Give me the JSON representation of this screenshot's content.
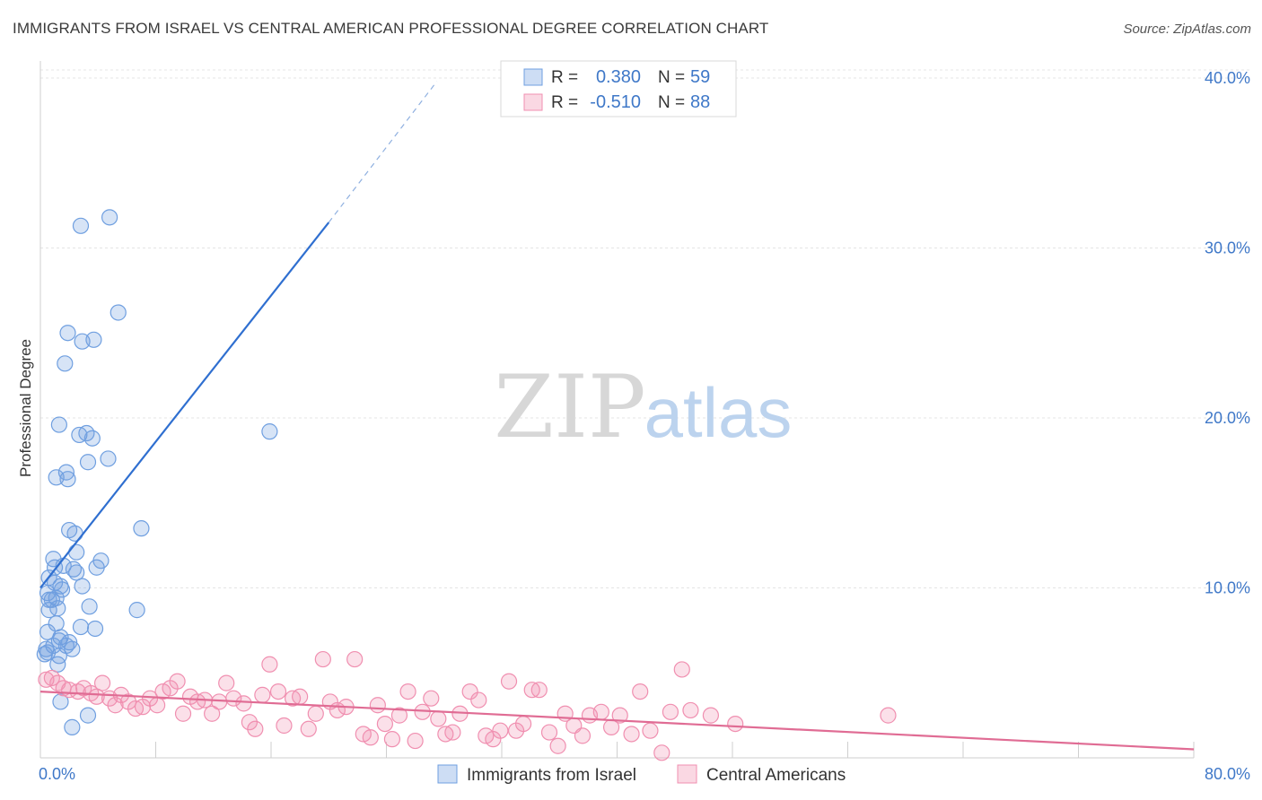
{
  "chart_data": {
    "type": "scatter",
    "title": "IMMIGRANTS FROM ISRAEL VS CENTRAL AMERICAN PROFESSIONAL DEGREE CORRELATION CHART",
    "source": "Source: ZipAtlas.com",
    "ylabel": "Professional Degree",
    "xlabel": "",
    "xlim": [
      0,
      80
    ],
    "ylim": [
      0,
      41
    ],
    "x_tick_labels": [
      "0.0%",
      "80.0%"
    ],
    "y_ticks": [
      {
        "value": 10,
        "label": "10.0%"
      },
      {
        "value": 20,
        "label": "20.0%"
      },
      {
        "value": 30,
        "label": "30.0%"
      },
      {
        "value": 40,
        "label": "40.0%"
      }
    ],
    "watermark": {
      "zip": "ZIP",
      "atlas": "atlas"
    },
    "legend_stats": [
      {
        "r_label": "R =",
        "r_value": "0.380",
        "n_label": "N =",
        "n_value": "59"
      },
      {
        "r_label": "R =",
        "r_value": "-0.510",
        "n_label": "N =",
        "n_value": "88"
      }
    ],
    "series": [
      {
        "name": "Immigrants from Israel",
        "color": "#6f9fe0",
        "line_color": "#2f6fd0",
        "trend": {
          "x0": 0.0,
          "y0": 10.0,
          "x1": 20.0,
          "y1": 31.5,
          "dash_to_x": 27.5,
          "dash_to_y": 39.8
        },
        "points": [
          [
            2.8,
            31.3
          ],
          [
            4.8,
            31.8
          ],
          [
            1.9,
            25.0
          ],
          [
            2.9,
            24.5
          ],
          [
            3.7,
            24.6
          ],
          [
            5.4,
            26.2
          ],
          [
            1.7,
            23.2
          ],
          [
            1.3,
            19.6
          ],
          [
            2.7,
            19.0
          ],
          [
            3.2,
            19.1
          ],
          [
            3.6,
            18.8
          ],
          [
            4.7,
            17.6
          ],
          [
            3.3,
            17.4
          ],
          [
            1.8,
            16.8
          ],
          [
            1.1,
            16.5
          ],
          [
            1.9,
            16.4
          ],
          [
            15.9,
            19.2
          ],
          [
            7.0,
            13.5
          ],
          [
            2.0,
            13.4
          ],
          [
            2.4,
            13.2
          ],
          [
            2.5,
            12.1
          ],
          [
            0.9,
            11.7
          ],
          [
            4.2,
            11.6
          ],
          [
            1.0,
            11.2
          ],
          [
            1.6,
            11.3
          ],
          [
            2.3,
            11.1
          ],
          [
            2.5,
            10.9
          ],
          [
            3.9,
            11.2
          ],
          [
            0.6,
            10.6
          ],
          [
            1.0,
            10.3
          ],
          [
            1.4,
            10.1
          ],
          [
            2.9,
            10.1
          ],
          [
            1.5,
            9.9
          ],
          [
            0.5,
            9.7
          ],
          [
            0.8,
            9.3
          ],
          [
            1.1,
            9.4
          ],
          [
            0.6,
            9.3
          ],
          [
            3.4,
            8.9
          ],
          [
            6.7,
            8.7
          ],
          [
            0.6,
            8.7
          ],
          [
            1.2,
            8.8
          ],
          [
            1.1,
            7.9
          ],
          [
            2.8,
            7.7
          ],
          [
            3.8,
            7.6
          ],
          [
            0.5,
            7.4
          ],
          [
            1.4,
            7.1
          ],
          [
            1.3,
            6.9
          ],
          [
            0.9,
            6.6
          ],
          [
            1.8,
            6.6
          ],
          [
            2.0,
            6.8
          ],
          [
            0.4,
            6.4
          ],
          [
            2.2,
            6.4
          ],
          [
            0.5,
            6.2
          ],
          [
            0.3,
            6.1
          ],
          [
            1.3,
            6.0
          ],
          [
            3.3,
            2.5
          ],
          [
            2.2,
            1.8
          ],
          [
            1.4,
            3.3
          ],
          [
            1.2,
            5.5
          ]
        ]
      },
      {
        "name": "Central Americans",
        "color": "#f08fb0",
        "line_color": "#e06c94",
        "trend": {
          "x0": 0.0,
          "y0": 3.9,
          "x1": 80.0,
          "y1": 0.5
        },
        "points": [
          [
            0.4,
            4.6
          ],
          [
            0.8,
            4.7
          ],
          [
            1.2,
            4.4
          ],
          [
            1.6,
            4.1
          ],
          [
            2.0,
            4.0
          ],
          [
            2.6,
            3.9
          ],
          [
            3.0,
            4.1
          ],
          [
            3.5,
            3.8
          ],
          [
            3.9,
            3.6
          ],
          [
            4.3,
            4.4
          ],
          [
            4.8,
            3.5
          ],
          [
            5.2,
            3.1
          ],
          [
            5.6,
            3.7
          ],
          [
            6.1,
            3.3
          ],
          [
            6.6,
            2.9
          ],
          [
            7.1,
            3.0
          ],
          [
            7.6,
            3.5
          ],
          [
            8.1,
            3.1
          ],
          [
            8.5,
            3.9
          ],
          [
            9.0,
            4.1
          ],
          [
            9.5,
            4.5
          ],
          [
            9.9,
            2.6
          ],
          [
            10.4,
            3.6
          ],
          [
            10.9,
            3.3
          ],
          [
            11.4,
            3.4
          ],
          [
            11.9,
            2.6
          ],
          [
            12.4,
            3.3
          ],
          [
            12.9,
            4.4
          ],
          [
            13.4,
            3.5
          ],
          [
            14.1,
            3.2
          ],
          [
            14.5,
            2.1
          ],
          [
            14.9,
            1.7
          ],
          [
            15.4,
            3.7
          ],
          [
            15.9,
            5.5
          ],
          [
            16.5,
            3.9
          ],
          [
            16.9,
            1.9
          ],
          [
            17.5,
            3.5
          ],
          [
            18.0,
            3.6
          ],
          [
            18.6,
            1.7
          ],
          [
            19.1,
            2.6
          ],
          [
            19.6,
            5.8
          ],
          [
            20.1,
            3.3
          ],
          [
            20.6,
            2.8
          ],
          [
            21.2,
            3.0
          ],
          [
            21.8,
            5.8
          ],
          [
            22.4,
            1.4
          ],
          [
            22.9,
            1.2
          ],
          [
            23.4,
            3.1
          ],
          [
            23.9,
            2.0
          ],
          [
            24.4,
            1.1
          ],
          [
            24.9,
            2.5
          ],
          [
            25.5,
            3.9
          ],
          [
            26.0,
            1.0
          ],
          [
            26.5,
            2.7
          ],
          [
            27.1,
            3.5
          ],
          [
            27.6,
            2.3
          ],
          [
            28.1,
            1.4
          ],
          [
            28.6,
            1.5
          ],
          [
            29.1,
            2.6
          ],
          [
            29.8,
            3.9
          ],
          [
            30.4,
            3.4
          ],
          [
            30.9,
            1.3
          ],
          [
            31.4,
            1.1
          ],
          [
            31.9,
            1.6
          ],
          [
            32.5,
            4.5
          ],
          [
            33.0,
            1.6
          ],
          [
            33.5,
            2.0
          ],
          [
            34.1,
            4.0
          ],
          [
            34.6,
            4.0
          ],
          [
            35.3,
            1.5
          ],
          [
            35.9,
            0.7
          ],
          [
            36.4,
            2.6
          ],
          [
            37.0,
            1.9
          ],
          [
            37.6,
            1.3
          ],
          [
            38.1,
            2.5
          ],
          [
            38.9,
            2.7
          ],
          [
            39.6,
            1.8
          ],
          [
            40.2,
            2.5
          ],
          [
            41.0,
            1.4
          ],
          [
            41.6,
            3.9
          ],
          [
            42.3,
            1.6
          ],
          [
            43.1,
            0.3
          ],
          [
            43.7,
            2.7
          ],
          [
            44.5,
            5.2
          ],
          [
            45.1,
            2.8
          ],
          [
            46.5,
            2.5
          ],
          [
            48.2,
            2.0
          ],
          [
            58.8,
            2.5
          ]
        ]
      }
    ]
  }
}
